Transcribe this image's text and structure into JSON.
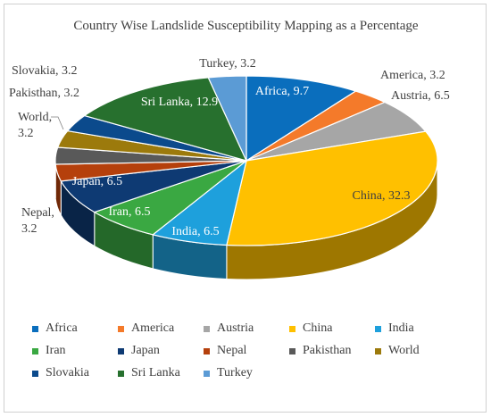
{
  "chart_data": {
    "type": "pie",
    "title": "Country Wise Landslide Susceptibility Mapping as a Percentage",
    "categories": [
      "Africa",
      "America",
      "Austria",
      "China",
      "India",
      "Iran",
      "Japan",
      "Nepal",
      "Pakisthan",
      "World",
      "Slovakia",
      "Sri Lanka",
      "Turkey"
    ],
    "values": [
      9.7,
      3.2,
      6.5,
      32.3,
      6.5,
      6.5,
      6.5,
      3.2,
      3.2,
      3.2,
      3.2,
      12.9,
      3.2
    ],
    "colors": [
      "#0a6ebd",
      "#f47a2a",
      "#a6a6a6",
      "#ffc000",
      "#1ea0dc",
      "#3aa842",
      "#0e3a73",
      "#b5400c",
      "#595959",
      "#9c7a0c",
      "#0b4a8c",
      "#27702e",
      "#5b9bd5"
    ],
    "slice_labels": [
      "Africa, 9.7",
      "America, 3.2",
      "Austria, 6.5",
      "China, 32.3",
      "India, 6.5",
      "Iran, 6.5",
      "Japan, 6.5",
      "Nepal, 3.2",
      "Pakisthan, 3.2",
      "World, 3.2",
      "Slovakia, 3.2",
      "Sri Lanka, 12.9",
      "Turkey, 3.2"
    ],
    "legend_position": "bottom",
    "style": "3d-pie"
  }
}
